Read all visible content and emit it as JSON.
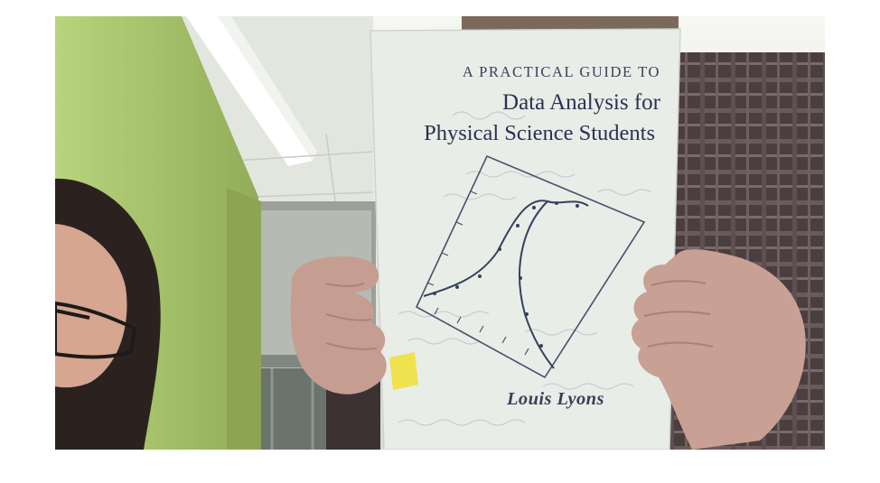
{
  "book": {
    "series": "A PRACTICAL GUIDE TO",
    "title_line_1": "Data Analysis for",
    "title_line_2": "Physical Science Students",
    "author": "Louis Lyons"
  },
  "scene": {
    "wall_color": "#a7c46a",
    "ceiling_color": "#eef0ea",
    "cover_color": "#eaeee9",
    "shirt_color": "#4a3d3d",
    "skin_color": "#c9a294",
    "sticky_note_color": "#efe24f"
  }
}
